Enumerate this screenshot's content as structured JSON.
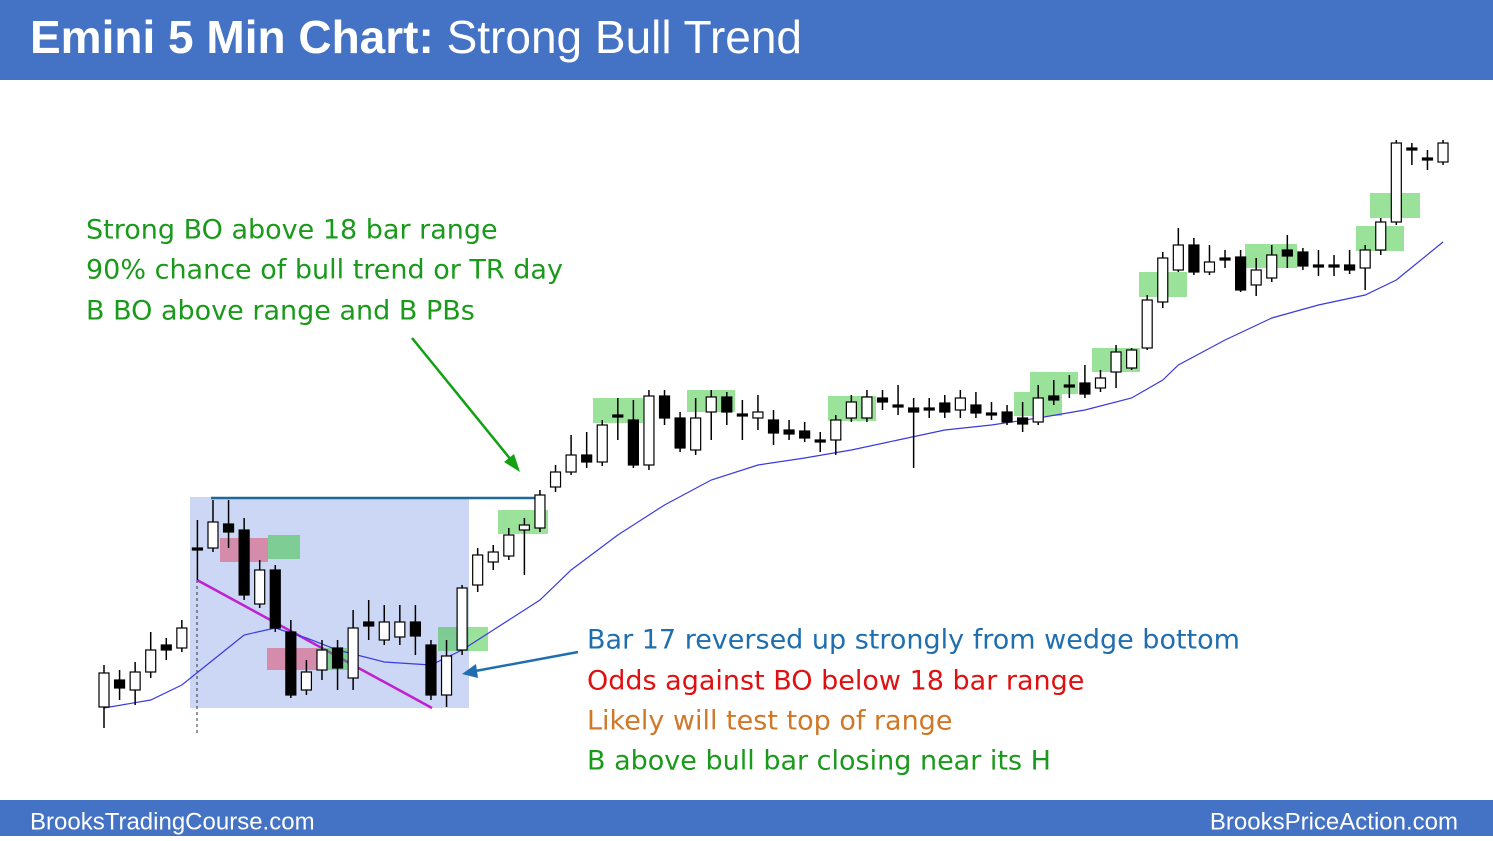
{
  "header": {
    "title_bold": "Emini 5 Min Chart:",
    "title_rest": "Strong Bull Trend"
  },
  "annotations_top": [
    "Strong BO above 18 bar range",
    "90% chance of bull trend or TR day",
    "B BO above range and B PBs"
  ],
  "annotations_bottom": [
    "Bar 17 reversed up strongly from wedge bottom",
    "Odds against BO below 18 bar range",
    "Likely will test top of range",
    "B above bull bar closing near its H"
  ],
  "footer": {
    "left": "BrooksTradingCourse.com",
    "right": "BrooksPriceAction.com"
  },
  "chart_data": {
    "type": "candlestick",
    "ylim": [
      60,
      700
    ],
    "open": [
      93,
      120,
      110,
      128,
      155,
      152,
      252,
      252,
      276,
      270,
      196,
      230,
      168,
      110,
      130,
      152,
      122,
      178,
      160,
      163,
      178,
      155,
      105,
      150,
      215,
      238,
      244,
      270,
      272,
      313,
      328,
      345,
      338,
      385,
      380,
      335,
      404,
      382,
      350,
      388,
      403,
      386,
      382,
      380,
      370,
      369,
      360,
      360,
      382,
      382,
      402,
      395,
      392,
      392,
      397,
      390,
      395,
      387,
      388,
      382,
      378,
      404,
      415,
      417,
      412,
      428,
      432,
      452,
      498,
      530,
      555,
      528,
      542,
      543,
      515,
      522,
      550,
      548,
      535,
      535,
      535,
      532,
      550,
      578,
      652,
      642,
      638
    ],
    "high": [
      135,
      130,
      138,
      168,
      162,
      180,
      280,
      300,
      300,
      282,
      240,
      235,
      180,
      140,
      160,
      160,
      190,
      200,
      195,
      195,
      195,
      160,
      160,
      215,
      252,
      255,
      272,
      282,
      310,
      335,
      365,
      368,
      380,
      402,
      400,
      410,
      410,
      388,
      402,
      410,
      408,
      400,
      405,
      390,
      380,
      378,
      368,
      385,
      405,
      410,
      410,
      415,
      402,
      402,
      405,
      410,
      408,
      398,
      395,
      398,
      415,
      420,
      425,
      435,
      430,
      455,
      452,
      505,
      548,
      572,
      562,
      555,
      550,
      550,
      542,
      555,
      565,
      552,
      550,
      545,
      550,
      555,
      582,
      660,
      657,
      650,
      660
    ],
    "low": [
      72,
      100,
      95,
      122,
      140,
      148,
      220,
      248,
      252,
      200,
      192,
      168,
      102,
      105,
      120,
      110,
      110,
      160,
      155,
      155,
      145,
      100,
      93,
      145,
      208,
      230,
      240,
      225,
      268,
      308,
      325,
      332,
      334,
      360,
      332,
      330,
      375,
      348,
      345,
      360,
      375,
      360,
      370,
      355,
      360,
      358,
      348,
      345,
      378,
      378,
      390,
      385,
      332,
      382,
      382,
      382,
      382,
      380,
      375,
      368,
      375,
      395,
      402,
      402,
      408,
      412,
      430,
      450,
      492,
      528,
      525,
      525,
      532,
      508,
      504,
      518,
      532,
      530,
      524,
      524,
      526,
      510,
      545,
      575,
      635,
      630,
      635
    ],
    "close": [
      127,
      112,
      128,
      150,
      150,
      172,
      252,
      278,
      268,
      205,
      230,
      172,
      105,
      128,
      150,
      132,
      172,
      174,
      178,
      178,
      164,
      105,
      144,
      212,
      245,
      248,
      265,
      275,
      305,
      328,
      345,
      338,
      375,
      385,
      335,
      404,
      382,
      352,
      382,
      403,
      388,
      386,
      388,
      367,
      366,
      362,
      360,
      380,
      398,
      403,
      398,
      395,
      388,
      392,
      388,
      402,
      387,
      387,
      378,
      376,
      402,
      400,
      415,
      406,
      422,
      448,
      450,
      500,
      542,
      555,
      528,
      538,
      542,
      510,
      530,
      545,
      544,
      534,
      535,
      535,
      530,
      550,
      578,
      657,
      650,
      642,
      657
    ],
    "ema": {
      "color": "#3a3adf",
      "x": [
        0,
        3,
        5,
        7,
        9,
        11,
        13,
        15,
        18,
        21,
        23,
        25,
        28,
        30,
        33,
        36,
        39,
        42,
        45,
        48,
        51,
        54,
        57,
        60,
        63,
        66,
        68,
        69,
        72,
        75,
        78,
        81,
        83,
        86
      ],
      "values": [
        92,
        100,
        115,
        140,
        165,
        172,
        162,
        150,
        138,
        135,
        150,
        170,
        200,
        230,
        265,
        295,
        320,
        335,
        342,
        350,
        360,
        370,
        375,
        382,
        390,
        402,
        420,
        435,
        460,
        482,
        495,
        505,
        520,
        558
      ]
    }
  }
}
